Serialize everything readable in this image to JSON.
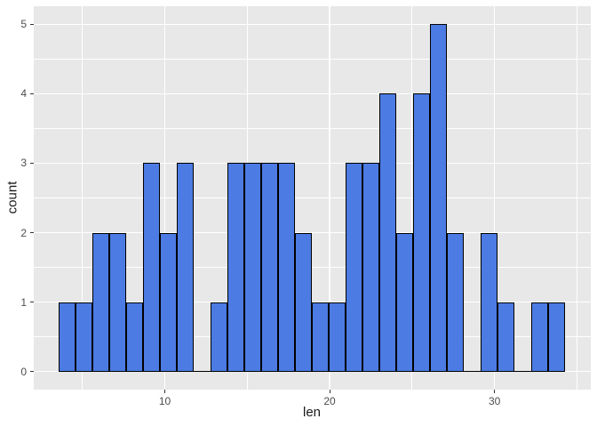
{
  "chart_data": {
    "type": "bar",
    "subtype": "histogram",
    "title": "",
    "xlabel": "len",
    "ylabel": "count",
    "bin_start": 3.58,
    "bin_width": 1.024,
    "counts": [
      1,
      1,
      2,
      2,
      1,
      3,
      2,
      3,
      0,
      1,
      3,
      3,
      3,
      3,
      2,
      1,
      1,
      3,
      3,
      4,
      2,
      4,
      5,
      2,
      0,
      2,
      1,
      0,
      1,
      1
    ],
    "total_observations": 60,
    "x_ticks": [
      10,
      20,
      30
    ],
    "x_minor_ticks": [
      5,
      15,
      25,
      35
    ],
    "y_ticks": [
      0,
      1,
      2,
      3,
      4,
      5
    ],
    "y_minor_ticks": [
      0.5,
      1.5,
      2.5,
      3.5,
      4.5
    ],
    "xlim": [
      2.05,
      35.84
    ],
    "ylim": [
      -0.26,
      5.26
    ],
    "grid": "major+minor white on gray panel",
    "legend": "none",
    "colors": {
      "bar_fill": "#4C7BE3",
      "bar_stroke": "#000000",
      "panel_bg": "#E8E8E8",
      "grid_line": "#FFFFFF",
      "tick_label": "#4D4D4D",
      "axis_title": "#1A1A1A",
      "tick_mark": "#333333",
      "figure_bg": "#FFFFFF"
    }
  }
}
